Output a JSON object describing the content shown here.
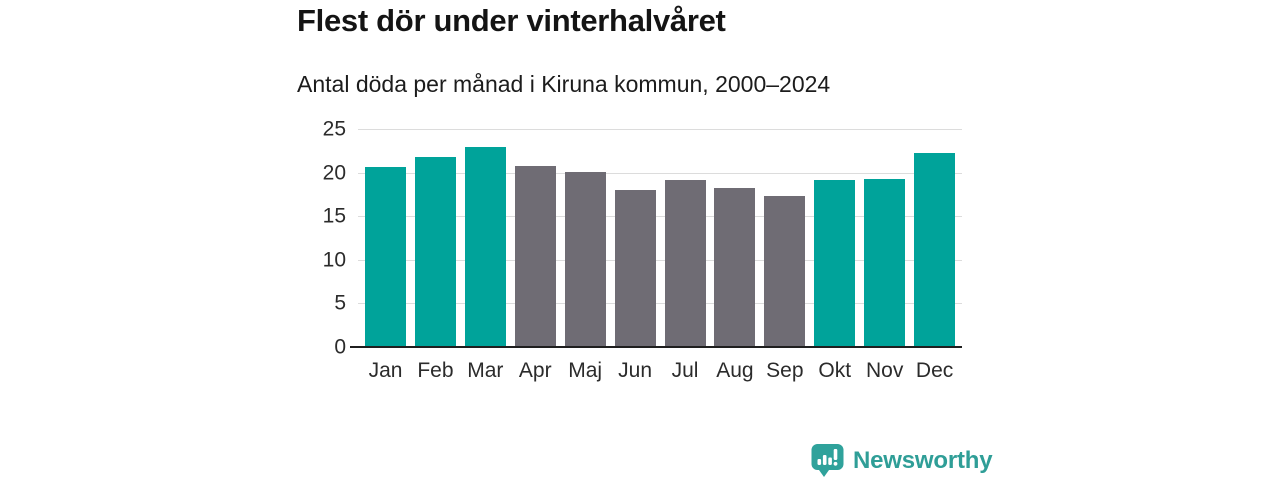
{
  "chart_data": {
    "type": "bar",
    "title": "Flest dör under vinterhalvåret",
    "subtitle": "Antal döda per månad i Kiruna kommun, 2000–2024",
    "categories": [
      "Jan",
      "Feb",
      "Mar",
      "Apr",
      "Maj",
      "Jun",
      "Jul",
      "Aug",
      "Sep",
      "Okt",
      "Nov",
      "Dec"
    ],
    "values": [
      20.6,
      21.8,
      22.9,
      20.8,
      20.1,
      18.0,
      19.2,
      18.2,
      17.3,
      19.1,
      19.3,
      22.3
    ],
    "bar_colors": [
      "winter",
      "winter",
      "winter",
      "summer",
      "summer",
      "summer",
      "summer",
      "summer",
      "summer",
      "winter",
      "winter",
      "winter"
    ],
    "palette": {
      "winter": "#00a39a",
      "summer": "#6f6c74"
    },
    "xlabel": "",
    "ylabel": "",
    "ylim": [
      0,
      25
    ],
    "yticks": [
      0,
      5,
      10,
      15,
      20,
      25
    ],
    "grid": "horizontal-light",
    "legend": "none",
    "colors": {
      "gridline": "#dcdcdc",
      "axis_line": "#1f1f1f",
      "tick_label": "#2b2b2b",
      "title_text": "#141414"
    }
  },
  "footer": {
    "brand": "Newsworthy",
    "brand_color": "#2f9e97",
    "icon": "newsworthy-chart-bubble-icon"
  }
}
